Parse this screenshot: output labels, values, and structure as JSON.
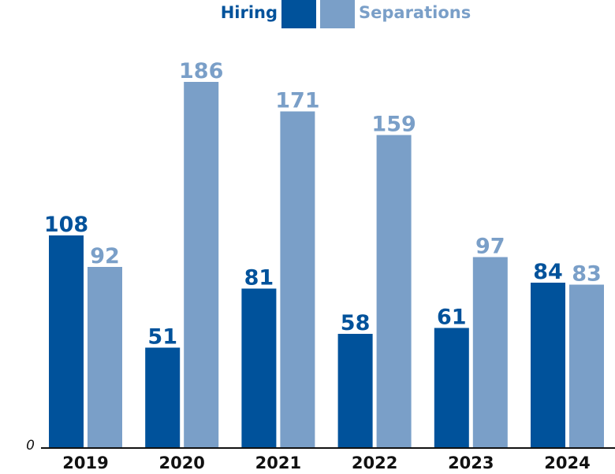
{
  "chart_data": {
    "type": "bar",
    "categories": [
      "2019",
      "2020",
      "2021",
      "2022",
      "2023",
      "2024"
    ],
    "series": [
      {
        "name": "Hiring",
        "values": [
          108,
          51,
          81,
          58,
          61,
          84
        ],
        "color": "#00529b"
      },
      {
        "name": "Separations",
        "values": [
          92,
          186,
          171,
          159,
          97,
          83
        ],
        "color": "#7a9fc8"
      }
    ],
    "title": "",
    "xlabel": "",
    "ylabel": "",
    "ylim": [
      0,
      200
    ],
    "y_tick_label": "0",
    "grid": false,
    "legend_position": "top-center",
    "axis_color": "#111111"
  }
}
